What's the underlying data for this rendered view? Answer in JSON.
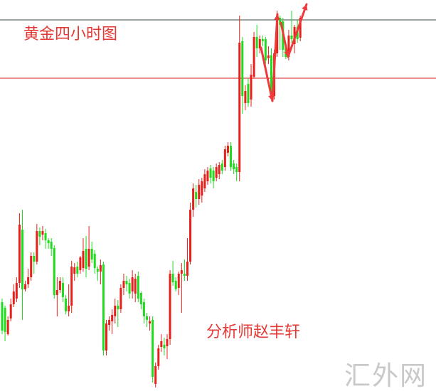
{
  "chart_data": {
    "type": "candlestick",
    "title": "黄金四小时图",
    "annotation": "分析师赵丰轩",
    "watermark": "汇外网",
    "xlabel": "",
    "ylabel": "",
    "grid": false,
    "colors": {
      "up": "#e8201c",
      "down": "#1fdc1f",
      "resistance_line": "#3a4a48",
      "support_line": "#d01818",
      "arrow": "#ee3a3a"
    },
    "horizontal_lines": [
      {
        "level": 522,
        "color": "#3a4a48"
      },
      {
        "level": 440,
        "color": "#d01818"
      }
    ],
    "candles_ohlc": [
      [
        125,
        130,
        80,
        85
      ],
      [
        117,
        120,
        70,
        83
      ],
      [
        80,
        105,
        78,
        100
      ],
      [
        102,
        130,
        98,
        122
      ],
      [
        122,
        150,
        118,
        140
      ],
      [
        130,
        160,
        125,
        152
      ],
      [
        152,
        250,
        145,
        234
      ],
      [
        227,
        255,
        100,
        143
      ],
      [
        143,
        155,
        140,
        150
      ],
      [
        150,
        172,
        145,
        160
      ],
      [
        160,
        195,
        155,
        190
      ],
      [
        190,
        195,
        165,
        182
      ],
      [
        182,
        235,
        178,
        225
      ],
      [
        225,
        230,
        205,
        217
      ],
      [
        220,
        232,
        212,
        225
      ],
      [
        222,
        228,
        200,
        212
      ],
      [
        212,
        215,
        200,
        208
      ],
      [
        210,
        215,
        190,
        200
      ],
      [
        201,
        205,
        130,
        135
      ],
      [
        135,
        160,
        105,
        142
      ],
      [
        142,
        160,
        138,
        155
      ],
      [
        152,
        160,
        125,
        132
      ],
      [
        130,
        135,
        108,
        112
      ],
      [
        112,
        150,
        105,
        120
      ],
      [
        120,
        183,
        110,
        175
      ],
      [
        165,
        180,
        155,
        174
      ],
      [
        175,
        182,
        160,
        165
      ],
      [
        170,
        190,
        165,
        188
      ],
      [
        173,
        215,
        168,
        197
      ],
      [
        200,
        218,
        160,
        172
      ],
      [
        175,
        232,
        170,
        200
      ],
      [
        200,
        210,
        180,
        185
      ],
      [
        193,
        198,
        165,
        173
      ],
      [
        172,
        175,
        155,
        168
      ],
      [
        168,
        185,
        150,
        177
      ],
      [
        178,
        182,
        50,
        57
      ],
      [
        57,
        100,
        50,
        95
      ],
      [
        93,
        105,
        85,
        100
      ],
      [
        98,
        115,
        80,
        107
      ],
      [
        105,
        130,
        95,
        120
      ],
      [
        120,
        128,
        90,
        115
      ],
      [
        115,
        150,
        110,
        145
      ],
      [
        145,
        165,
        135,
        155
      ],
      [
        155,
        162,
        140,
        150
      ],
      [
        152,
        158,
        130,
        137
      ],
      [
        140,
        170,
        130,
        160
      ],
      [
        137,
        165,
        125,
        158
      ],
      [
        162,
        168,
        125,
        130
      ],
      [
        138,
        140,
        115,
        122
      ],
      [
        125,
        130,
        95,
        105
      ],
      [
        105,
        110,
        90,
        100
      ],
      [
        95,
        105,
        85,
        98
      ],
      [
        100,
        105,
        12,
        20
      ],
      [
        10,
        40,
        5,
        35
      ],
      [
        35,
        65,
        30,
        60
      ],
      [
        62,
        80,
        55,
        70
      ],
      [
        65,
        75,
        50,
        60
      ],
      [
        63,
        80,
        45,
        73
      ],
      [
        73,
        170,
        65,
        165
      ],
      [
        165,
        183,
        148,
        153
      ],
      [
        155,
        160,
        140,
        143
      ],
      [
        145,
        168,
        135,
        165
      ],
      [
        165,
        180,
        110,
        170
      ],
      [
        165,
        185,
        155,
        162
      ],
      [
        162,
        215,
        155,
        182
      ],
      [
        182,
        265,
        178,
        255
      ],
      [
        255,
        292,
        245,
        285
      ],
      [
        280,
        290,
        258,
        270
      ],
      [
        270,
        298,
        262,
        290
      ],
      [
        275,
        300,
        265,
        295
      ],
      [
        285,
        312,
        280,
        305
      ],
      [
        295,
        315,
        290,
        310
      ],
      [
        313,
        318,
        292,
        300
      ],
      [
        310,
        315,
        285,
        295
      ],
      [
        300,
        320,
        295,
        315
      ],
      [
        305,
        322,
        298,
        318
      ],
      [
        320,
        325,
        305,
        310
      ],
      [
        315,
        345,
        310,
        340
      ],
      [
        335,
        350,
        330,
        345
      ],
      [
        345,
        350,
        310,
        315
      ],
      [
        320,
        325,
        305,
        312
      ],
      [
        315,
        320,
        295,
        308
      ],
      [
        308,
        528,
        295,
        490
      ],
      [
        492,
        498,
        390,
        415
      ],
      [
        405,
        430,
        395,
        422
      ],
      [
        432,
        440,
        400,
        405
      ],
      [
        410,
        460,
        400,
        445
      ],
      [
        442,
        505,
        440,
        498
      ],
      [
        498,
        515,
        470,
        482
      ],
      [
        482,
        500,
        475,
        495
      ],
      [
        495,
        500,
        485,
        492
      ],
      [
        495,
        498,
        460,
        465
      ],
      [
        468,
        485,
        460,
        472
      ],
      [
        472,
        482,
        410,
        415
      ],
      [
        415,
        480,
        410,
        475
      ],
      [
        475,
        535,
        470,
        528
      ],
      [
        525,
        528,
        480,
        515
      ],
      [
        520,
        525,
        470,
        480
      ],
      [
        485,
        490,
        467,
        470
      ],
      [
        470,
        508,
        465,
        500
      ],
      [
        500,
        535,
        490,
        495
      ],
      [
        488,
        515,
        475,
        512
      ],
      [
        512,
        522,
        490,
        495
      ],
      [
        497,
        528,
        492,
        525
      ]
    ]
  }
}
